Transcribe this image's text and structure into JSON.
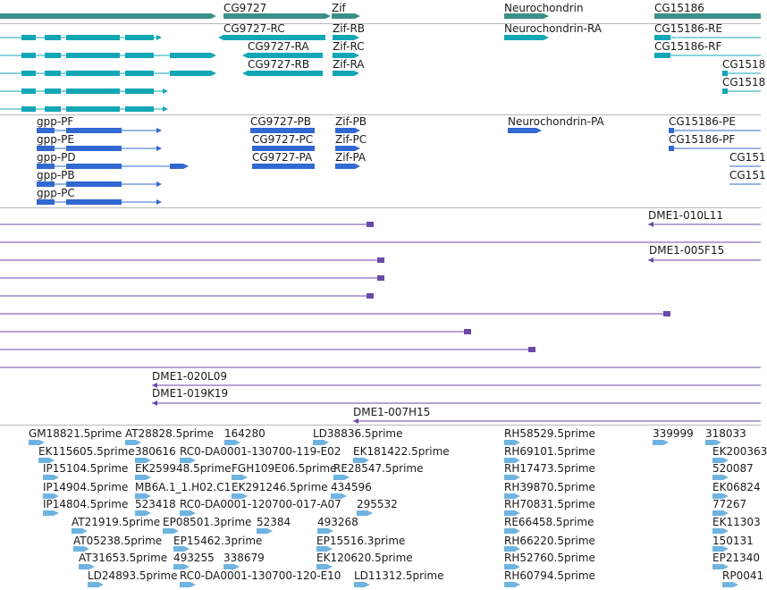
{
  "colors": {
    "gene": "#3a8f8a",
    "mrna": "#13a6b5",
    "cds": "#3168d2",
    "clone": "#6a49a8",
    "est": "#6fb3e0",
    "divider": "#b8b8b8"
  },
  "tracks": {
    "gene": {
      "labels": [
        "CG9727",
        "Zif",
        "Neurochondrin",
        "CG15186"
      ]
    },
    "transcripts": {
      "labels": [
        "CG9727-RC",
        "Zif-RB",
        "Neurochondrin-RA",
        "CG15186-RE",
        "CG9727-RA",
        "Zif-RC",
        "CG15186-RF",
        "CG9727-RB",
        "Zif-RA",
        "CG1518",
        "CG1518"
      ]
    },
    "proteins": {
      "labels": [
        "gpp-PF",
        "CG9727-PB",
        "Zif-PB",
        "Neurochondrin-PA",
        "CG15186-PE",
        "gpp-PE",
        "CG9727-PC",
        "Zif-PC",
        "CG15186-PF",
        "gpp-PD",
        "CG9727-PA",
        "Zif-PA",
        "CG151",
        "gpp-PB",
        "CG151",
        "gpp-PC"
      ]
    },
    "clones": {
      "labels": [
        "DME1-010L11",
        "DME1-005F15",
        "DME1-020L09",
        "DME1-019K19",
        "DME1-007H15"
      ]
    },
    "ests": {
      "labels": [
        "GM18821.5prime",
        "AT28828.5prime",
        "164280",
        "LD38836.5prime",
        "RH58529.5prime",
        "339999",
        "318033",
        "EK115605.5prime",
        "380616",
        "RC0-DA0001-130700-119-E02",
        "EK181422.5prime",
        "RH69101.5prime",
        "EK200363",
        "IP15104.5prime",
        "EK259948.5prime",
        "FGH109E06.5prime",
        "RE28547.5prime",
        "RH17473.5prime",
        "520087",
        "IP14904.5prime",
        "MB6A.1_1.H02.C1",
        "EK291246.5prime",
        "434596",
        "RH39870.5prime",
        "EK06824",
        "IP14804.5prime",
        "523418",
        "RC0-DA0001-120700-017-A07",
        "295532",
        "RH70831.5prime",
        "77267",
        "AT21919.5prime",
        "EP08501.3prime",
        "52384",
        "493268",
        "RE66458.5prime",
        "EK11303",
        "AT05238.5prime",
        "EP15462.3prime",
        "EP15516.3prime",
        "RH66220.5prime",
        "150131",
        "AT31653.5prime",
        "493255",
        "338679",
        "EK120620.5prime",
        "RH52760.5prime",
        "EP21340",
        "LD24893.5prime",
        "RC0-DA0001-130700-120-E10",
        "LD11312.5prime",
        "RH60794.5prime",
        "RP0041"
      ]
    }
  }
}
